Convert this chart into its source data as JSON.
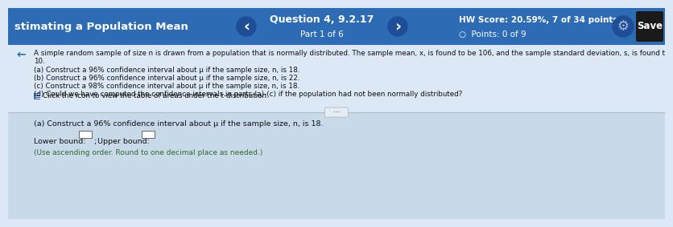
{
  "header_bg": "#2d6bb5",
  "header_text_color": "#ffffff",
  "header_left": "stimating a Population Mean",
  "header_question": "Question 4, 9.2.17",
  "header_part": "Part 1 of 6",
  "header_hw_score": "HW Score: 20.59%, 7 of 34 points",
  "header_points": "Points: 0 of 9",
  "header_save": "Save",
  "top_body_bg": "#dce8f5",
  "bottom_body_bg": "#c8d9ea",
  "main_line1": "A simple random sample of size n is drawn from a population that is normally distributed. The sample mean, x, is found to be 106, and the sample standard deviation, s, is found to be",
  "main_line2": "10.",
  "item_a": "(a) Construct a 96% confidence interval about μ if the sample size, n, is 18.",
  "item_b": "(b) Construct a 96% confidence interval about μ if the sample size, n, is 22.",
  "item_c": "(c) Construct a 98% confidence interval about μ if the sample size, n, is 18.",
  "item_d": "(d) Could we have computed the confidence intervals in parts (a)-(c) if the population had not been normally distributed?",
  "click_text": "Click the icon to view the table of areas under the t-distribution.",
  "bottom_question": "(a) Construct a 96% confidence interval about μ if the sample size, n, is 18.",
  "lower_label": "Lower bound:",
  "upper_label": "Upper bound:",
  "instruction": "(Use ascending order. Round to one decimal place as needed.)",
  "arrow_left": "<",
  "arrow_right": ">",
  "text_color": "#111111",
  "instruction_color": "#2e6b30"
}
